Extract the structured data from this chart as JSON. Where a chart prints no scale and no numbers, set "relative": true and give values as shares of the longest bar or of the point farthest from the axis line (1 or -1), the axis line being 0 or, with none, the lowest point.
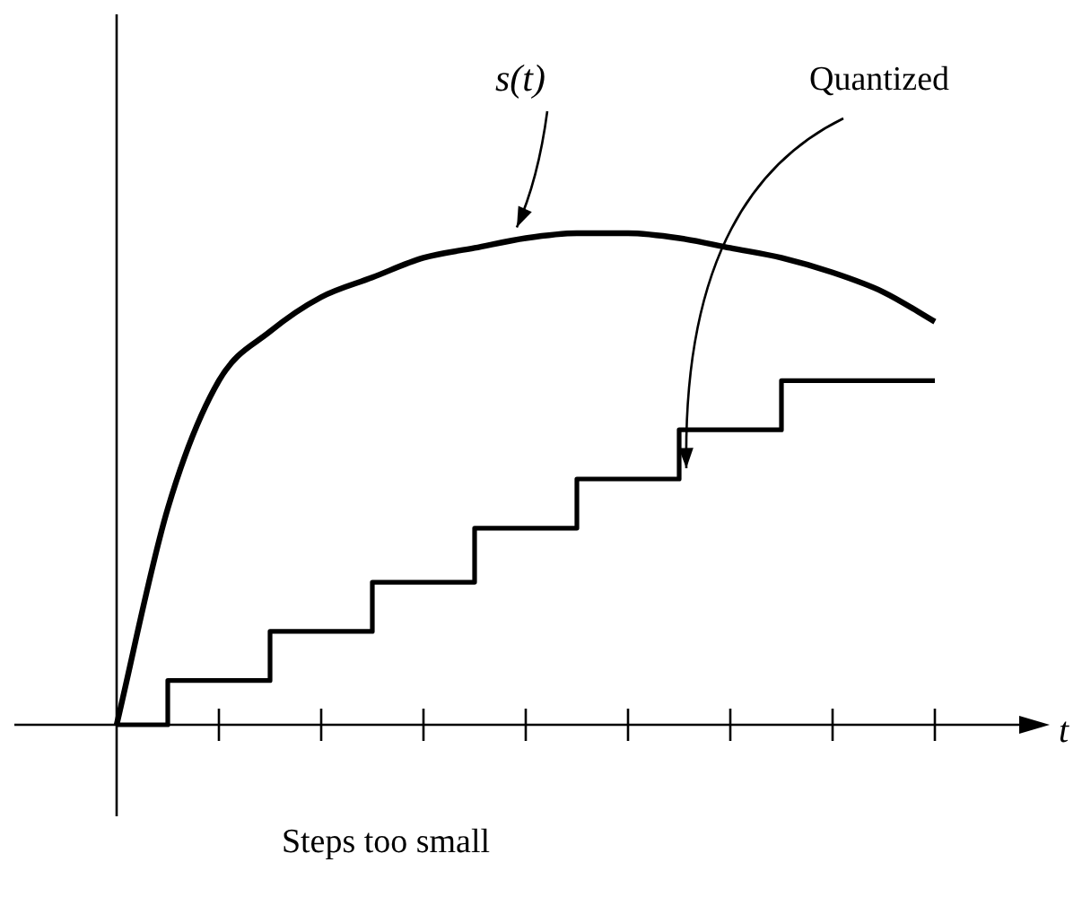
{
  "chart_data": {
    "type": "line",
    "relative": true,
    "xlabel": "t",
    "categories": [
      null,
      null,
      null,
      null,
      null,
      null,
      null,
      null,
      null,
      null,
      null,
      null,
      null,
      null,
      null,
      null,
      null
    ],
    "series": [
      {
        "name": "s(t)",
        "color": "#000000",
        "values": [
          0,
          0.44,
          0.7,
          0.8,
          0.87,
          0.91,
          0.95,
          0.97,
          0.99,
          1.0,
          1.0,
          0.99,
          0.97,
          0.95,
          0.92,
          0.88,
          0.82
        ]
      },
      {
        "name": "Quantized",
        "type": "step",
        "color": "#000000",
        "values": [
          0,
          0,
          0.09,
          0.09,
          0.19,
          0.19,
          0.29,
          0.29,
          0.4,
          0.4,
          0.5,
          0.5,
          0.6,
          0.6,
          0.7,
          0.7,
          0.7
        ]
      }
    ],
    "annotations": [
      "Steps too small"
    ],
    "legend": false,
    "marker": "none"
  }
}
